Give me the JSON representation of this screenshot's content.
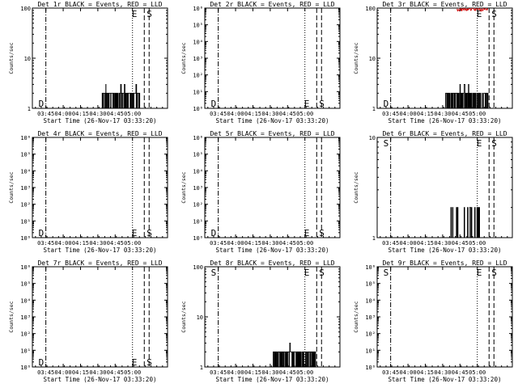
{
  "chart_data": [
    {
      "type": "line",
      "title": "Det 1r BLACK = Events, RED = LLD",
      "xlabel": "Start Time (26-Nov-17 03:33:20)",
      "ylabel": "Counts/sec",
      "ylim": [
        1,
        100
      ],
      "y_ticks": [
        {
          "v": 1,
          "label": "1"
        },
        {
          "v": 10,
          "label": "10"
        },
        {
          "v": 100,
          "label": "100"
        }
      ],
      "x_ticks": [
        "03:45",
        "04:00",
        "04:15",
        "04:30",
        "04:45",
        "05:00"
      ],
      "markers": {
        "left": "D",
        "right": [
          "E",
          "S"
        ]
      },
      "events": {
        "start": 1.0,
        "end": 1.55,
        "low": 1,
        "high": 2,
        "spikes": [
          [
            0.1,
            3
          ],
          [
            0.5,
            3
          ],
          [
            0.6,
            3
          ],
          [
            0.9,
            3
          ]
        ]
      },
      "lld": null
    },
    {
      "type": "line",
      "title": "Det 2r BLACK = Events, RED = LLD",
      "xlabel": "Start Time (26-Nov-17 03:33:20)",
      "ylabel": "Counts/sec",
      "ylim": [
        1,
        1000000
      ],
      "y_ticks": [
        {
          "v": 1,
          "label": "10⁰"
        },
        {
          "v": 10,
          "label": "10¹"
        },
        {
          "v": 100,
          "label": "10²"
        },
        {
          "v": 1000,
          "label": "10³"
        },
        {
          "v": 10000,
          "label": "10⁴"
        },
        {
          "v": 100000,
          "label": "10⁵"
        },
        {
          "v": 1000000,
          "label": "10⁶"
        }
      ],
      "x_ticks": [
        "03:45",
        "04:00",
        "04:15",
        "04:30",
        "04:45",
        "05:00"
      ],
      "markers": {
        "left": "D",
        "right": [
          "E",
          "S"
        ]
      },
      "events": null,
      "lld": null
    },
    {
      "type": "line",
      "title": "Det 3r BLACK = Events, RED = LLD",
      "xlabel": "Start Time (26-Nov-17 03:33:20)",
      "ylabel": "Counts/sec",
      "ylim": [
        1,
        100
      ],
      "y_ticks": [
        {
          "v": 1,
          "label": "1"
        },
        {
          "v": 10,
          "label": "10"
        },
        {
          "v": 100,
          "label": "100"
        }
      ],
      "x_ticks": [
        "03:45",
        "04:00",
        "04:15",
        "04:30",
        "04:45",
        "05:00"
      ],
      "markers": {
        "left": "D",
        "right": [
          "E",
          "S"
        ]
      },
      "events": {
        "start": 0.98,
        "end": 1.6,
        "low": 1,
        "high": 2,
        "spikes": [
          [
            0.35,
            3
          ],
          [
            0.45,
            3
          ],
          [
            0.55,
            3
          ]
        ]
      },
      "lld": {
        "start": 1.15,
        "end": 1.6,
        "level": 95
      }
    },
    {
      "type": "line",
      "title": "Det 4r BLACK = Events, RED = LLD",
      "xlabel": "Start Time (26-Nov-17 03:33:20)",
      "ylabel": "Counts/sec",
      "ylim": [
        1,
        1000000
      ],
      "y_ticks": [
        {
          "v": 1,
          "label": "10⁰"
        },
        {
          "v": 10,
          "label": "10¹"
        },
        {
          "v": 100,
          "label": "10²"
        },
        {
          "v": 1000,
          "label": "10³"
        },
        {
          "v": 10000,
          "label": "10⁴"
        },
        {
          "v": 100000,
          "label": "10⁵"
        },
        {
          "v": 1000000,
          "label": "10⁶"
        }
      ],
      "x_ticks": [
        "03:45",
        "04:00",
        "04:15",
        "04:30",
        "04:45",
        "05:00"
      ],
      "markers": {
        "left": "D",
        "right": [
          "E",
          "S"
        ]
      },
      "events": null,
      "lld": null
    },
    {
      "type": "line",
      "title": "Det 5r BLACK = Events, RED = LLD",
      "xlabel": "Start Time (26-Nov-17 03:33:20)",
      "ylabel": "Counts/sec",
      "ylim": [
        1,
        1000000
      ],
      "y_ticks": [
        {
          "v": 1,
          "label": "10⁰"
        },
        {
          "v": 10,
          "label": "10¹"
        },
        {
          "v": 100,
          "label": "10²"
        },
        {
          "v": 1000,
          "label": "10³"
        },
        {
          "v": 10000,
          "label": "10⁴"
        },
        {
          "v": 100000,
          "label": "10⁵"
        },
        {
          "v": 1000000,
          "label": "10⁶"
        }
      ],
      "x_ticks": [
        "03:45",
        "04:00",
        "04:15",
        "04:30",
        "04:45",
        "05:00"
      ],
      "markers": {
        "left": "D",
        "right": [
          "E",
          "S"
        ]
      },
      "events": null,
      "lld": null
    },
    {
      "type": "line",
      "title": "Det 6r BLACK = Events, RED = LLD",
      "xlabel": "Start Time (26-Nov-17 03:33:20)",
      "ylabel": "Counts/sec",
      "ylim": [
        1,
        10
      ],
      "y_ticks": [
        {
          "v": 1,
          "label": "1"
        },
        {
          "v": 10,
          "label": "10"
        }
      ],
      "x_ticks": [
        "03:45",
        "04:00",
        "04:15",
        "04:30",
        "04:45",
        "05:00"
      ],
      "markers": {
        "left": "S",
        "right": [
          "E",
          "S"
        ]
      },
      "events": {
        "start": 1.03,
        "end": 1.5,
        "low": 1,
        "high": 2,
        "sparse": true,
        "spikes": []
      },
      "lld": null
    },
    {
      "type": "line",
      "title": "Det 7r BLACK = Events, RED = LLD",
      "xlabel": "Start Time (26-Nov-17 03:33:20)",
      "ylabel": "Counts/sec",
      "ylim": [
        1,
        1000000
      ],
      "y_ticks": [
        {
          "v": 1,
          "label": "10⁰"
        },
        {
          "v": 10,
          "label": "10¹"
        },
        {
          "v": 100,
          "label": "10²"
        },
        {
          "v": 1000,
          "label": "10³"
        },
        {
          "v": 10000,
          "label": "10⁴"
        },
        {
          "v": 100000,
          "label": "10⁵"
        },
        {
          "v": 1000000,
          "label": "10⁶"
        }
      ],
      "x_ticks": [
        "03:45",
        "04:00",
        "04:15",
        "04:30",
        "04:45",
        "05:00"
      ],
      "markers": {
        "left": "D",
        "right": [
          "E",
          "S"
        ]
      },
      "events": null,
      "lld": null
    },
    {
      "type": "line",
      "title": "Det 8r BLACK = Events, RED = LLD",
      "xlabel": "Start Time (26-Nov-17 03:33:20)",
      "ylabel": "Counts/sec",
      "ylim": [
        1,
        100
      ],
      "y_ticks": [
        {
          "v": 1,
          "label": "1"
        },
        {
          "v": 10,
          "label": "10"
        },
        {
          "v": 100,
          "label": "100"
        }
      ],
      "x_ticks": [
        "03:45",
        "04:00",
        "04:15",
        "04:30",
        "04:45",
        "05:00"
      ],
      "markers": {
        "left": "S",
        "right": [
          "E",
          "S"
        ]
      },
      "events": {
        "start": 0.98,
        "end": 1.6,
        "low": 1,
        "high": 2,
        "spikes": [
          [
            0.4,
            3
          ]
        ]
      },
      "lld": null
    },
    {
      "type": "line",
      "title": "Det 9r BLACK = Events, RED = LLD",
      "xlabel": "Start Time (26-Nov-17 03:33:20)",
      "ylabel": "Counts/sec",
      "ylim": [
        1,
        1000000
      ],
      "y_ticks": [
        {
          "v": 1,
          "label": "10⁰"
        },
        {
          "v": 10,
          "label": "10¹"
        },
        {
          "v": 100,
          "label": "10²"
        },
        {
          "v": 1000,
          "label": "10³"
        },
        {
          "v": 10000,
          "label": "10⁴"
        },
        {
          "v": 100000,
          "label": "10⁵"
        },
        {
          "v": 1000000,
          "label": "10⁶"
        }
      ],
      "x_ticks": [
        "03:45",
        "04:00",
        "04:15",
        "04:30",
        "04:45",
        "05:00"
      ],
      "markers": {
        "left": "S",
        "right": [
          "E",
          "S"
        ]
      },
      "events": null,
      "lld": null
    }
  ]
}
